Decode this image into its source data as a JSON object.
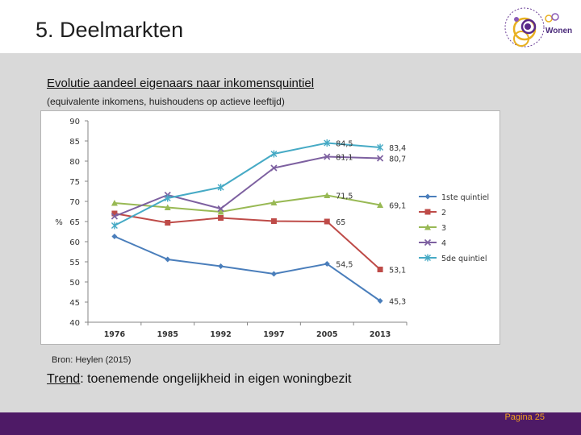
{
  "slide": {
    "title": "5. Deelmarkten",
    "logo_text": "Wonen",
    "chart_title": "Evolutie aandeel eigenaars naar inkomensquintiel",
    "chart_subtitle": "(equivalente inkomens, huishoudens op actieve leeftijd)",
    "source": "Bron: Heylen (2015)",
    "trend_label": "Trend",
    "trend_text": ": toenemende ongelijkheid in eigen woningbezit",
    "page_number": "Pagina 25"
  },
  "colors": {
    "footer": "#4e1a66",
    "page_number": "#f0a020"
  },
  "chart_data": {
    "type": "line",
    "title": "",
    "xlabel": "",
    "ylabel": "%",
    "categories": [
      "1976",
      "1985",
      "1992",
      "1997",
      "2005",
      "2013"
    ],
    "ylim": [
      40,
      90
    ],
    "yticks": [
      40,
      45,
      50,
      55,
      60,
      65,
      70,
      75,
      80,
      85,
      90
    ],
    "grid": false,
    "legend_position": "right",
    "series": [
      {
        "name": "1ste quintiel",
        "color": "#4a7ebb",
        "marker": "diamond",
        "values": [
          61.3,
          55.6,
          53.9,
          52.0,
          54.5,
          45.3
        ],
        "labels": [
          "",
          "",
          "",
          "",
          "54,5",
          "45,3"
        ]
      },
      {
        "name": "2",
        "color": "#be4b48",
        "marker": "square",
        "values": [
          67.0,
          64.7,
          65.9,
          65.1,
          65.0,
          53.1
        ],
        "labels": [
          "",
          "",
          "",
          "",
          "65",
          "53,1"
        ]
      },
      {
        "name": "3",
        "color": "#98b954",
        "marker": "triangle",
        "values": [
          69.6,
          68.5,
          67.4,
          69.7,
          71.5,
          69.1
        ],
        "labels": [
          "",
          "",
          "",
          "",
          "71,5",
          "69,1"
        ]
      },
      {
        "name": "4",
        "color": "#7d60a0",
        "marker": "x",
        "values": [
          66.3,
          71.6,
          68.2,
          78.3,
          81.1,
          80.7
        ],
        "labels": [
          "",
          "",
          "",
          "",
          "81,1",
          "80,7"
        ]
      },
      {
        "name": "5de quintiel",
        "color": "#46aac5",
        "marker": "star",
        "values": [
          64.0,
          70.8,
          73.5,
          81.8,
          84.5,
          83.4
        ],
        "labels": [
          "",
          "",
          "",
          "",
          "84,5",
          "83,4"
        ]
      }
    ]
  }
}
